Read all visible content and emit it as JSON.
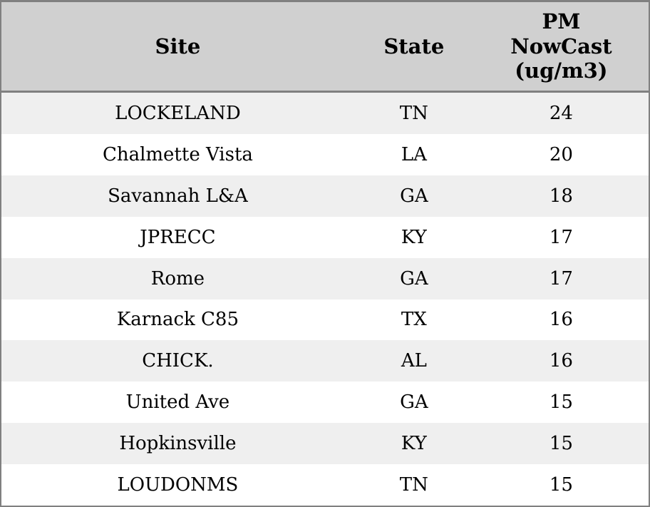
{
  "colors": {
    "header_background": "#d0d0d0",
    "striped_row_background": "#efefef",
    "plain_row_background": "#ffffff",
    "border": "#808080",
    "text": "#000000"
  },
  "table": {
    "columns": [
      {
        "label": "Site"
      },
      {
        "label": "State"
      },
      {
        "label": "PM\nNowCast\n(ug/m3)"
      }
    ],
    "rows": [
      {
        "site": "LOCKELAND",
        "state": "TN",
        "pm_nowcast": "24"
      },
      {
        "site": "Chalmette Vista",
        "state": "LA",
        "pm_nowcast": "20"
      },
      {
        "site": "Savannah L&A",
        "state": "GA",
        "pm_nowcast": "18"
      },
      {
        "site": "JPRECC",
        "state": "KY",
        "pm_nowcast": "17"
      },
      {
        "site": "Rome",
        "state": "GA",
        "pm_nowcast": "17"
      },
      {
        "site": "Karnack C85",
        "state": "TX",
        "pm_nowcast": "16"
      },
      {
        "site": "CHICK.",
        "state": "AL",
        "pm_nowcast": "16"
      },
      {
        "site": "United Ave",
        "state": "GA",
        "pm_nowcast": "15"
      },
      {
        "site": "Hopkinsville",
        "state": "KY",
        "pm_nowcast": "15"
      },
      {
        "site": "LOUDONMS",
        "state": "TN",
        "pm_nowcast": "15"
      }
    ]
  },
  "chart_data": {
    "type": "table",
    "columns": [
      "Site",
      "State",
      "PM NowCast (ug/m3)"
    ],
    "rows": [
      [
        "LOCKELAND",
        "TN",
        24
      ],
      [
        "Chalmette Vista",
        "LA",
        20
      ],
      [
        "Savannah L&A",
        "GA",
        18
      ],
      [
        "JPRECC",
        "KY",
        17
      ],
      [
        "Rome",
        "GA",
        17
      ],
      [
        "Karnack C85",
        "TX",
        16
      ],
      [
        "CHICK.",
        "AL",
        16
      ],
      [
        "United Ave",
        "GA",
        15
      ],
      [
        "Hopkinsville",
        "KY",
        15
      ],
      [
        "LOUDONMS",
        "TN",
        15
      ]
    ],
    "title": "",
    "notes": "Sites sorted by PM NowCast descending; zebra striping on alternating rows starting with the first data row."
  }
}
